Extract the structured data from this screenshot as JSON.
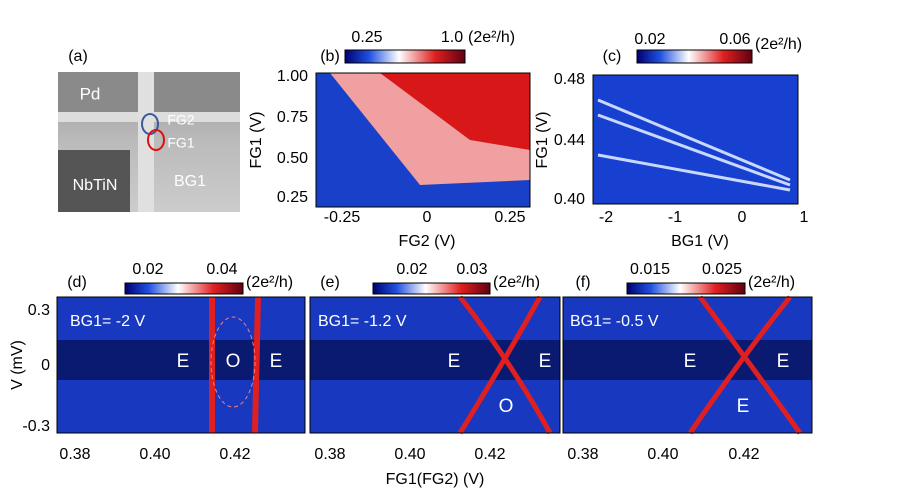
{
  "panels": {
    "a": {
      "label": "(a)",
      "texts": [
        "Pd",
        "FG2",
        "FG1",
        "NbTiN",
        "BG1"
      ]
    },
    "b": {
      "label": "(b)",
      "colorbar": [
        "0.25",
        "1.0"
      ],
      "unit": "(2e²/h)",
      "xticks": [
        "-0.25",
        "0",
        "0.25"
      ],
      "yticks": [
        "1.00",
        "0.75",
        "0.50",
        "0.25"
      ],
      "xlabel": "FG2 (V)",
      "ylabel": "FG1 (V)"
    },
    "c": {
      "label": "(c)",
      "colorbar": [
        "0.02",
        "0.06"
      ],
      "unit": "(2e²/h)",
      "xticks": [
        "-2",
        "-1",
        "0",
        "1"
      ],
      "yticks": [
        "0.48",
        "0.44",
        "0.40"
      ],
      "xlabel": "BG1 (V)",
      "ylabel": "FG1 (V)"
    },
    "d": {
      "label": "(d)",
      "colorbar": [
        "0.02",
        "0.04"
      ],
      "unit": "(2e²/h)",
      "annotation": "BG1= -2 V",
      "regions": [
        "E",
        "O",
        "E"
      ],
      "xticks": [
        "0.38",
        "0.40",
        "0.42"
      ],
      "yticks": [
        "0.3",
        "0",
        "-0.3"
      ],
      "ylabel": "V (mV)"
    },
    "e": {
      "label": "(e)",
      "colorbar": [
        "0.02",
        "0.03"
      ],
      "unit": "(2e²/h)",
      "annotation": "BG1= -1.2 V",
      "regions": [
        "E",
        "E",
        "O"
      ],
      "xticks": [
        "0.38",
        "0.40",
        "0.42"
      ]
    },
    "f": {
      "label": "(f)",
      "colorbar": [
        "0.015",
        "0.025"
      ],
      "unit": "(2e²/h)",
      "annotation": "BG1= -0.5 V",
      "regions": [
        "E",
        "E",
        "E"
      ],
      "xticks": [
        "0.38",
        "0.40",
        "0.42"
      ]
    }
  },
  "xlabel": "FG1(FG2) (V)"
}
